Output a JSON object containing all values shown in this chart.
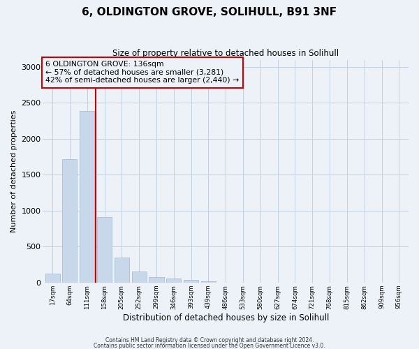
{
  "title": "6, OLDINGTON GROVE, SOLIHULL, B91 3NF",
  "subtitle": "Size of property relative to detached houses in Solihull",
  "xlabel": "Distribution of detached houses by size in Solihull",
  "ylabel": "Number of detached properties",
  "bar_values": [
    125,
    1720,
    2390,
    910,
    350,
    155,
    80,
    55,
    35,
    20,
    0,
    0,
    0,
    0,
    0,
    0,
    0,
    0,
    0,
    0,
    0
  ],
  "bar_labels": [
    "17sqm",
    "64sqm",
    "111sqm",
    "158sqm",
    "205sqm",
    "252sqm",
    "299sqm",
    "346sqm",
    "393sqm",
    "439sqm",
    "486sqm",
    "533sqm",
    "580sqm",
    "627sqm",
    "674sqm",
    "721sqm",
    "768sqm",
    "815sqm",
    "862sqm",
    "909sqm",
    "956sqm"
  ],
  "bar_color": "#c8d8ea",
  "bar_edgecolor": "#a8bfd4",
  "vline_color": "#cc0000",
  "annotation_text": "6 OLDINGTON GROVE: 136sqm\n← 57% of detached houses are smaller (3,281)\n42% of semi-detached houses are larger (2,440) →",
  "annotation_box_edgecolor": "#cc0000",
  "ylim": [
    0,
    3100
  ],
  "yticks": [
    0,
    500,
    1000,
    1500,
    2000,
    2500,
    3000
  ],
  "footer_line1": "Contains HM Land Registry data © Crown copyright and database right 2024.",
  "footer_line2": "Contains public sector information licensed under the Open Government Licence v3.0.",
  "background_color": "#edf2f9",
  "grid_color": "#c5d0df",
  "num_bars": 21
}
